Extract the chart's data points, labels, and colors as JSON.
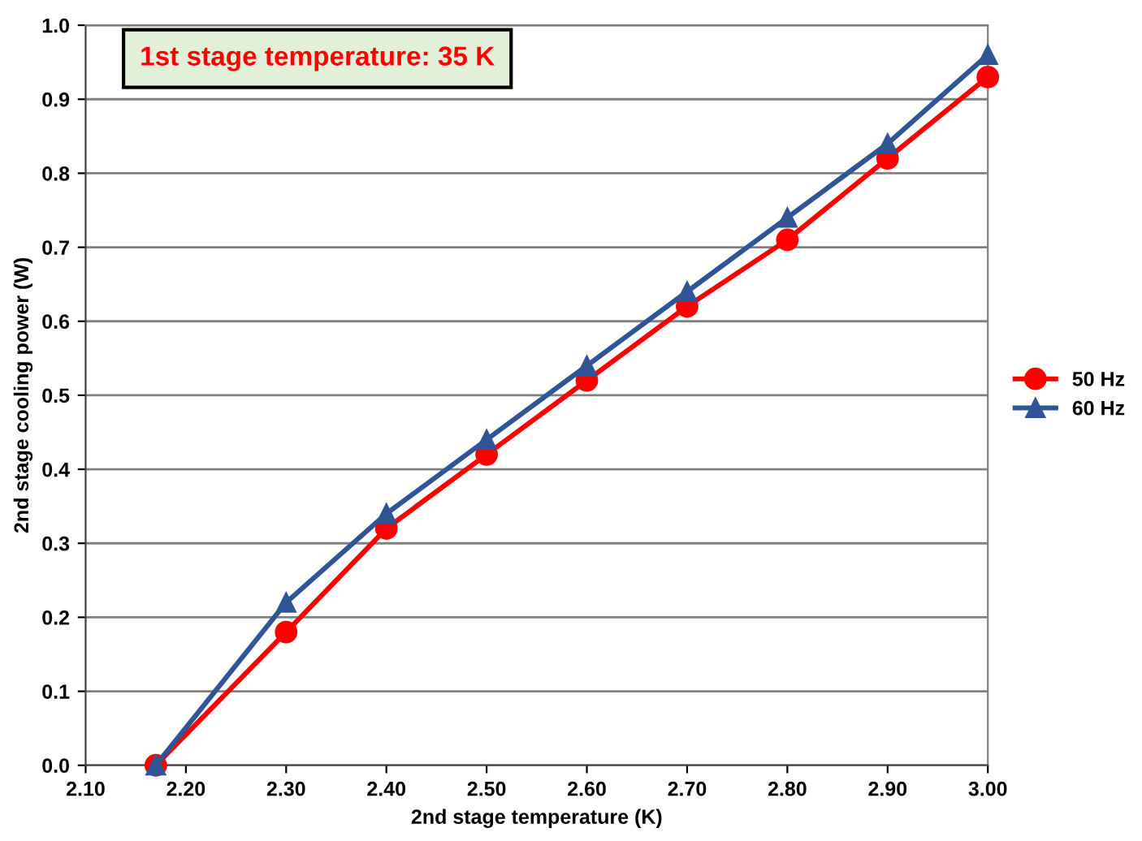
{
  "chart_data": {
    "type": "line",
    "xlabel": "2nd stage temperature (K)",
    "ylabel": "2nd stage cooling power (W)",
    "annotations": [
      "1st stage temperature: 35 K"
    ],
    "x": [
      2.17,
      2.3,
      2.4,
      2.5,
      2.6,
      2.7,
      2.8,
      2.9,
      3.0
    ],
    "series": [
      {
        "name": "50 Hz",
        "color": "#ff0000",
        "marker": "circle",
        "values": [
          0,
          0.18,
          0.32,
          0.42,
          0.52,
          0.62,
          0.71,
          0.82,
          0.93
        ]
      },
      {
        "name": "60 Hz",
        "color": "#2f5597",
        "marker": "triangle",
        "values": [
          0,
          0.22,
          0.34,
          0.44,
          0.54,
          0.64,
          0.74,
          0.84,
          0.96
        ]
      }
    ],
    "xlim": [
      2.1,
      3.0
    ],
    "xticks": [
      {
        "value": 2.1,
        "label": "2.10"
      },
      {
        "value": 2.2,
        "label": "2.20"
      },
      {
        "value": 2.3,
        "label": "2.30"
      },
      {
        "value": 2.4,
        "label": "2.40"
      },
      {
        "value": 2.5,
        "label": "2.50"
      },
      {
        "value": 2.6,
        "label": "2.60"
      },
      {
        "value": 2.7,
        "label": "2.70"
      },
      {
        "value": 2.8,
        "label": "2.80"
      },
      {
        "value": 2.9,
        "label": "2.90"
      },
      {
        "value": 3.0,
        "label": "3.00"
      }
    ],
    "ylim": [
      0,
      1.0
    ],
    "yticks": [
      {
        "value": 0,
        "label": "0.0"
      },
      0.1,
      0.2,
      0.3,
      0.4,
      0.5,
      0.6,
      0.7,
      0.8,
      0.9,
      {
        "value": 1.0,
        "label": "1.0"
      }
    ],
    "grid": "y",
    "legend": "right",
    "line_style": "solid"
  }
}
